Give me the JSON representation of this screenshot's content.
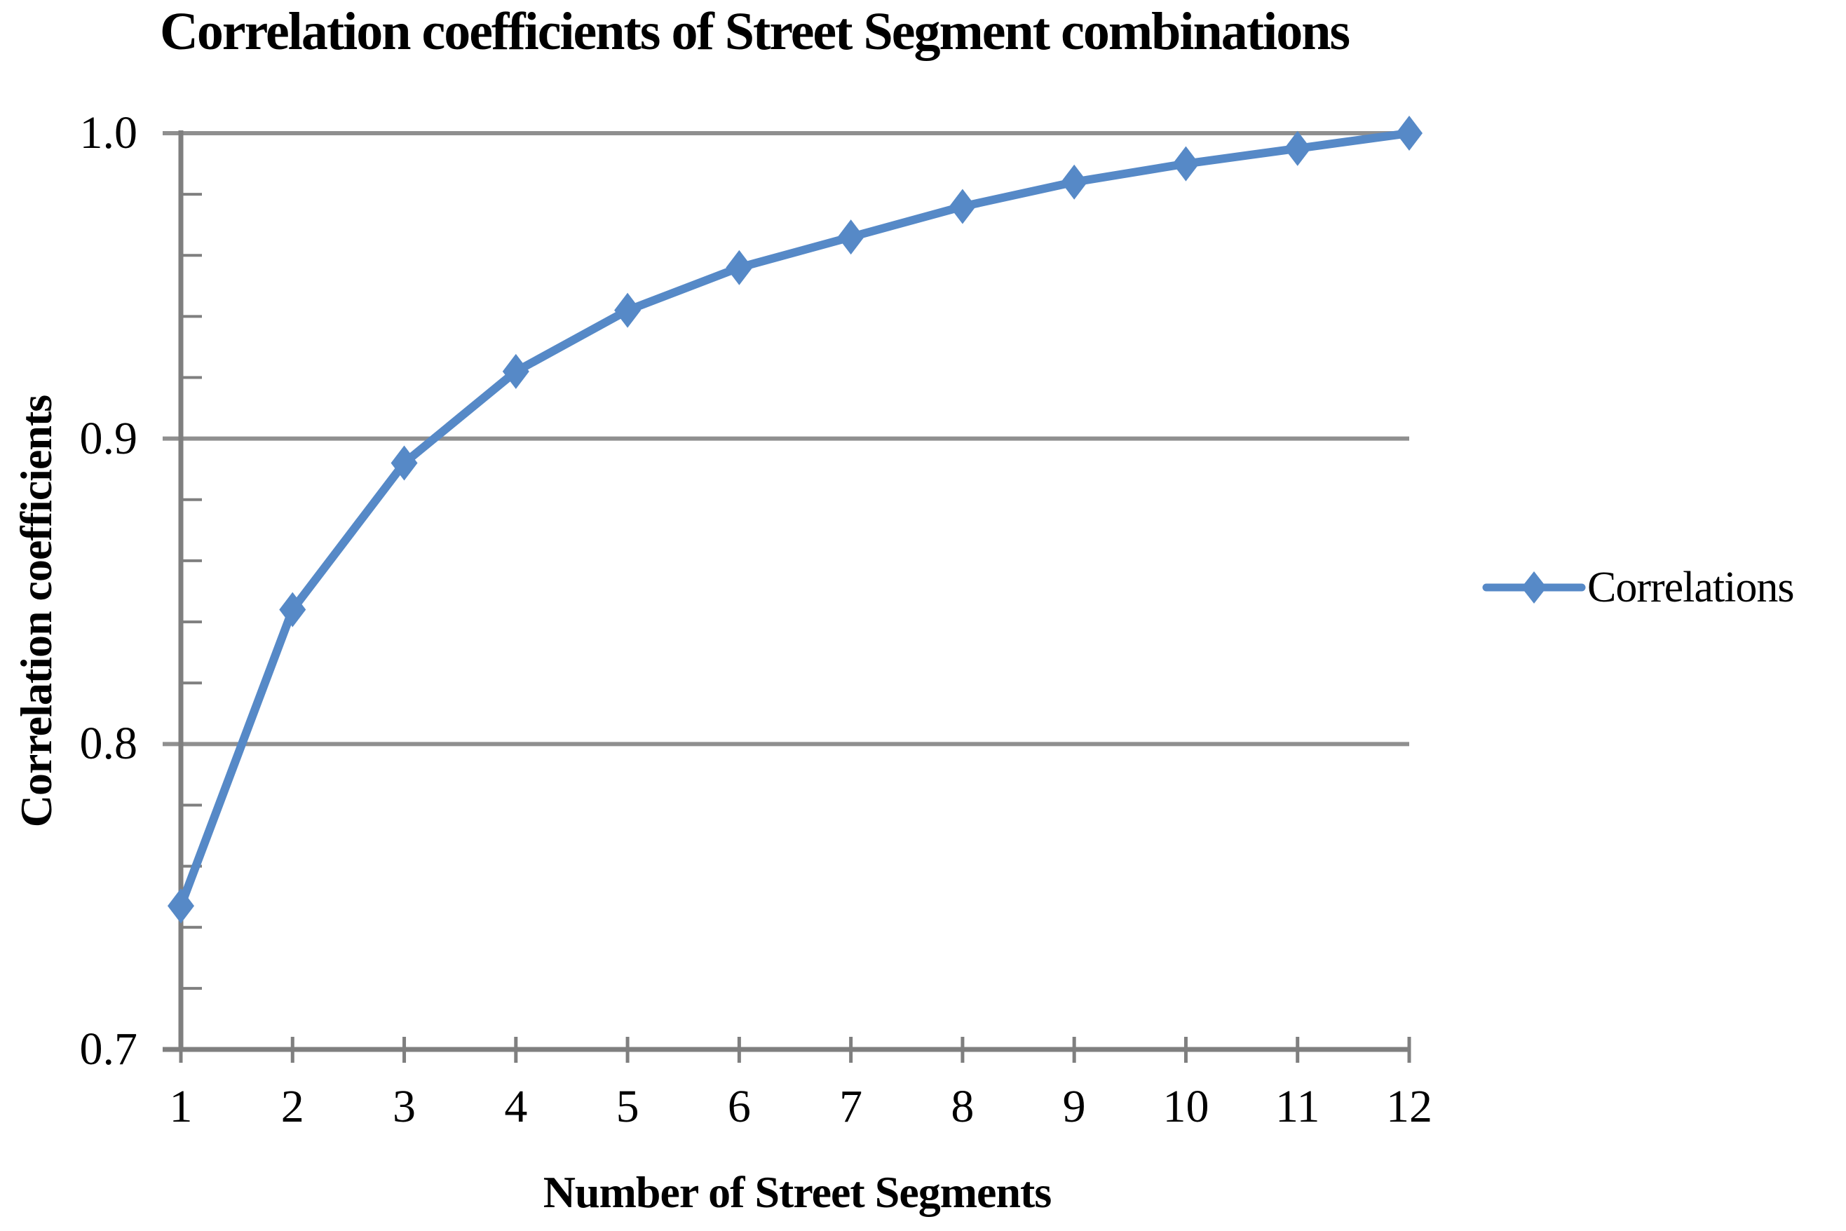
{
  "chart_data": {
    "type": "line",
    "title": "Correlation coefficients of Street Segment combinations",
    "xlabel": "Number of Street Segments",
    "ylabel": "Correlation coefficients",
    "legend": [
      "Correlations"
    ],
    "legend_position": "right-middle",
    "x": [
      1,
      2,
      3,
      4,
      5,
      6,
      7,
      8,
      9,
      10,
      11,
      12
    ],
    "x_tick_labels": [
      "1",
      "2",
      "3",
      "4",
      "5",
      "6",
      "7",
      "8",
      "9",
      "10",
      "11",
      "12"
    ],
    "series": [
      {
        "name": "Correlations",
        "values": [
          0.747,
          0.844,
          0.892,
          0.922,
          0.942,
          0.956,
          0.966,
          0.976,
          0.984,
          0.99,
          0.995,
          1.0
        ]
      }
    ],
    "ylim": [
      0.7,
      1.0
    ],
    "y_ticks": [
      1.0,
      0.9,
      0.8,
      0.7
    ],
    "y_tick_labels": [
      "1.0",
      "0.9",
      "0.8",
      "0.7"
    ],
    "y_minor_tick_step": 0.02,
    "grid": "horizontal-major",
    "marker": "diamond",
    "colors": {
      "series": "#5689C7",
      "gridline": "#8F8F8F",
      "axis": "#7F7F7F",
      "text": "#000000",
      "background": "#FFFFFF"
    }
  }
}
